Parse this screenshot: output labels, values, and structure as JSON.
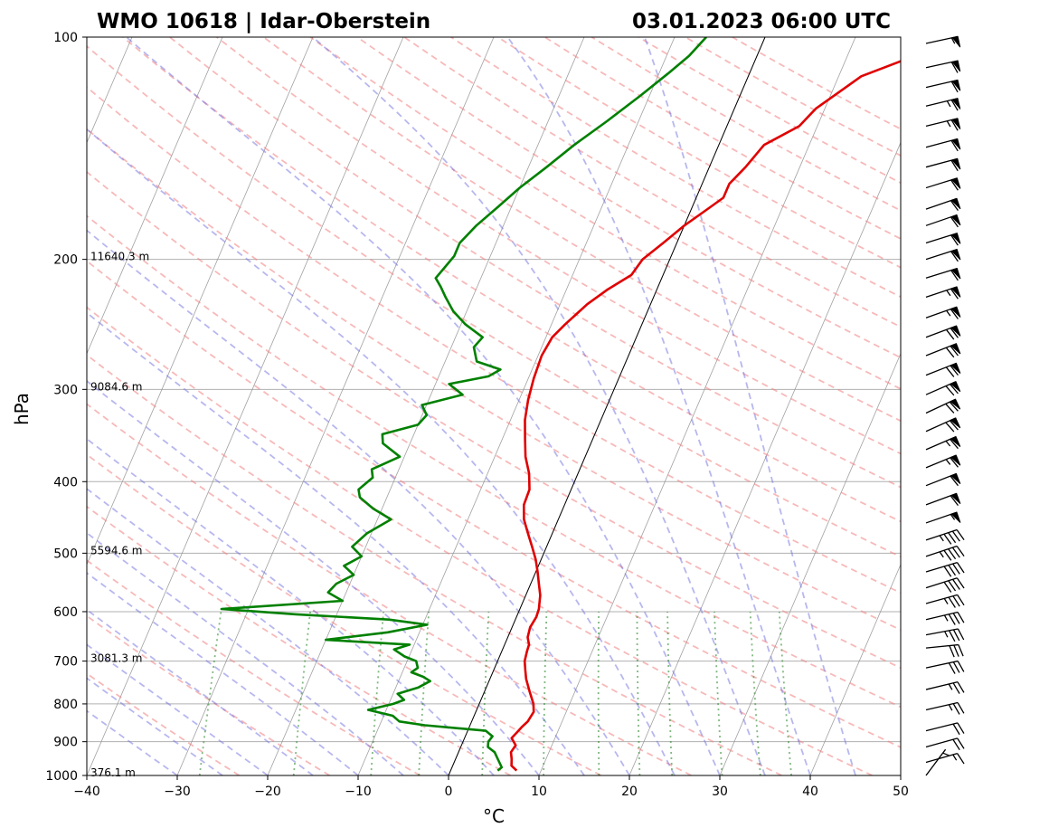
{
  "chart_data": {
    "type": "line",
    "title_left": "WMO 10618 | Idar-Oberstein",
    "title_right": "03.01.2023 06:00 UTC",
    "xlabel": "°C",
    "ylabel": "hPa",
    "xlim": [
      -40,
      50
    ],
    "ylim": [
      1000,
      100
    ],
    "x_ticks": [
      -40,
      -30,
      -20,
      -10,
      0,
      10,
      20,
      30,
      40,
      50
    ],
    "x_tick_labels": [
      "−40",
      "−30",
      "−20",
      "−10",
      "0",
      "10",
      "20",
      "30",
      "40",
      "50"
    ],
    "p_ticks": [
      100,
      200,
      300,
      400,
      500,
      600,
      700,
      800,
      900,
      1000
    ],
    "p_tick_labels": [
      "100",
      "200",
      "300",
      "400",
      "500",
      "600",
      "700",
      "800",
      "900",
      "1000"
    ],
    "height_labels": [
      {
        "p": 200,
        "text": "11640.3 m"
      },
      {
        "p": 300,
        "text": "9084.6 m"
      },
      {
        "p": 500,
        "text": "5594.6 m"
      },
      {
        "p": 700,
        "text": "3081.3 m"
      },
      {
        "p": 1000,
        "text": "376.1 m"
      }
    ],
    "series": [
      {
        "name": "temperature",
        "color": "#e00000",
        "points": [
          [
            985,
            7.3
          ],
          [
            970,
            6.5
          ],
          [
            950,
            6.2
          ],
          [
            930,
            5.8
          ],
          [
            910,
            6.0
          ],
          [
            890,
            5.2
          ],
          [
            875,
            5.5
          ],
          [
            860,
            5.8
          ],
          [
            845,
            6.2
          ],
          [
            820,
            6.4
          ],
          [
            800,
            6.0
          ],
          [
            770,
            5.0
          ],
          [
            740,
            4.0
          ],
          [
            720,
            3.5
          ],
          [
            700,
            3.0
          ],
          [
            680,
            2.8
          ],
          [
            665,
            2.7
          ],
          [
            650,
            2.2
          ],
          [
            630,
            2.0
          ],
          [
            610,
            2.2
          ],
          [
            595,
            2.1
          ],
          [
            570,
            1.6
          ],
          [
            550,
            0.9
          ],
          [
            530,
            0.2
          ],
          [
            510,
            -0.6
          ],
          [
            490,
            -1.6
          ],
          [
            470,
            -2.7
          ],
          [
            450,
            -3.8
          ],
          [
            430,
            -4.5
          ],
          [
            410,
            -4.6
          ],
          [
            390,
            -5.4
          ],
          [
            370,
            -6.6
          ],
          [
            350,
            -7.5
          ],
          [
            330,
            -8.4
          ],
          [
            310,
            -9.0
          ],
          [
            290,
            -9.4
          ],
          [
            270,
            -9.6
          ],
          [
            255,
            -9.3
          ],
          [
            245,
            -8.5
          ],
          [
            230,
            -7.0
          ],
          [
            220,
            -5.5
          ],
          [
            210,
            -3.5
          ],
          [
            200,
            -3.0
          ],
          [
            190,
            -1.5
          ],
          [
            180,
            0.0
          ],
          [
            170,
            2.0
          ],
          [
            165,
            3.0
          ],
          [
            158,
            3.0
          ],
          [
            150,
            4.0
          ],
          [
            140,
            5.0
          ],
          [
            132,
            8.0
          ],
          [
            125,
            9.0
          ],
          [
            118,
            11.0
          ],
          [
            113,
            12.5
          ],
          [
            108,
            16.0
          ],
          [
            106,
            17.5
          ],
          [
            104,
            18.5
          ],
          [
            102,
            20.5
          ],
          [
            100,
            20.7
          ]
        ]
      },
      {
        "name": "dewpoint",
        "color": "#008000",
        "points": [
          [
            985,
            5.2
          ],
          [
            975,
            5.5
          ],
          [
            960,
            5.0
          ],
          [
            945,
            4.5
          ],
          [
            930,
            4.0
          ],
          [
            915,
            3.0
          ],
          [
            900,
            2.8
          ],
          [
            885,
            3.0
          ],
          [
            870,
            2.0
          ],
          [
            855,
            -5.0
          ],
          [
            845,
            -8.0
          ],
          [
            830,
            -9.0
          ],
          [
            815,
            -12.0
          ],
          [
            800,
            -9.5
          ],
          [
            790,
            -8.5
          ],
          [
            775,
            -9.5
          ],
          [
            760,
            -7.5
          ],
          [
            745,
            -6.5
          ],
          [
            735,
            -7.5
          ],
          [
            725,
            -9.0
          ],
          [
            715,
            -8.5
          ],
          [
            700,
            -9.0
          ],
          [
            690,
            -10.5
          ],
          [
            675,
            -12.0
          ],
          [
            665,
            -10.5
          ],
          [
            655,
            -20.0
          ],
          [
            640,
            -13.5
          ],
          [
            625,
            -9.5
          ],
          [
            615,
            -14.0
          ],
          [
            605,
            -24.5
          ],
          [
            595,
            -33.0
          ],
          [
            580,
            -20.0
          ],
          [
            565,
            -22.0
          ],
          [
            550,
            -21.5
          ],
          [
            535,
            -20.0
          ],
          [
            520,
            -21.5
          ],
          [
            505,
            -20.0
          ],
          [
            490,
            -21.5
          ],
          [
            470,
            -20.5
          ],
          [
            450,
            -18.5
          ],
          [
            435,
            -21.0
          ],
          [
            420,
            -23.0
          ],
          [
            410,
            -23.5
          ],
          [
            395,
            -22.5
          ],
          [
            385,
            -23.0
          ],
          [
            370,
            -20.5
          ],
          [
            355,
            -23.0
          ],
          [
            345,
            -23.5
          ],
          [
            335,
            -20.0
          ],
          [
            325,
            -19.5
          ],
          [
            315,
            -20.5
          ],
          [
            305,
            -16.5
          ],
          [
            295,
            -18.5
          ],
          [
            288,
            -14.5
          ],
          [
            282,
            -13.5
          ],
          [
            275,
            -16.5
          ],
          [
            263,
            -17.5
          ],
          [
            255,
            -17.0
          ],
          [
            245,
            -19.5
          ],
          [
            235,
            -21.5
          ],
          [
            225,
            -23.0
          ],
          [
            218,
            -24.0
          ],
          [
            212,
            -25.0
          ],
          [
            205,
            -24.5
          ],
          [
            198,
            -24.0
          ],
          [
            190,
            -24.0
          ],
          [
            180,
            -23.0
          ],
          [
            170,
            -21.5
          ],
          [
            160,
            -20.0
          ],
          [
            150,
            -18.0
          ],
          [
            140,
            -16.0
          ],
          [
            130,
            -13.5
          ],
          [
            120,
            -11.0
          ],
          [
            112,
            -9.0
          ],
          [
            106,
            -7.5
          ],
          [
            100,
            -6.5
          ]
        ]
      }
    ],
    "wind_barbs": [
      {
        "p": 102,
        "u": -55,
        "v": -12
      },
      {
        "p": 110,
        "u": -60,
        "v": -13
      },
      {
        "p": 117,
        "u": -60,
        "v": -14
      },
      {
        "p": 124,
        "u": -62,
        "v": -15
      },
      {
        "p": 132,
        "u": -62,
        "v": -15
      },
      {
        "p": 141,
        "u": -60,
        "v": -16
      },
      {
        "p": 150,
        "u": -60,
        "v": -16
      },
      {
        "p": 160,
        "u": -58,
        "v": -18
      },
      {
        "p": 171,
        "u": -58,
        "v": -20
      },
      {
        "p": 180,
        "u": -58,
        "v": -20
      },
      {
        "p": 190,
        "u": -58,
        "v": -18
      },
      {
        "p": 200,
        "u": -56,
        "v": -18
      },
      {
        "p": 212,
        "u": -58,
        "v": -18
      },
      {
        "p": 225,
        "u": -60,
        "v": -20
      },
      {
        "p": 240,
        "u": -62,
        "v": -22
      },
      {
        "p": 255,
        "u": -64,
        "v": -24
      },
      {
        "p": 270,
        "u": -66,
        "v": -26
      },
      {
        "p": 287,
        "u": -66,
        "v": -26
      },
      {
        "p": 305,
        "u": -64,
        "v": -28
      },
      {
        "p": 323,
        "u": -64,
        "v": -30
      },
      {
        "p": 342,
        "u": -62,
        "v": -28
      },
      {
        "p": 362,
        "u": -60,
        "v": -26
      },
      {
        "p": 383,
        "u": -58,
        "v": -24
      },
      {
        "p": 405,
        "u": -56,
        "v": -22
      },
      {
        "p": 430,
        "u": -54,
        "v": -20
      },
      {
        "p": 455,
        "u": -52,
        "v": -18
      },
      {
        "p": 480,
        "u": -45,
        "v": -15
      },
      {
        "p": 505,
        "u": -42,
        "v": -14
      },
      {
        "p": 530,
        "u": -40,
        "v": -12
      },
      {
        "p": 557,
        "u": -38,
        "v": -12
      },
      {
        "p": 585,
        "u": -36,
        "v": -10
      },
      {
        "p": 615,
        "u": -34,
        "v": -8
      },
      {
        "p": 645,
        "u": -32,
        "v": -6
      },
      {
        "p": 672,
        "u": -30,
        "v": -3
      },
      {
        "p": 715,
        "u": -28,
        "v": -6
      },
      {
        "p": 765,
        "u": -25,
        "v": -6
      },
      {
        "p": 815,
        "u": -22,
        "v": -5
      },
      {
        "p": 870,
        "u": -20,
        "v": -5
      },
      {
        "p": 915,
        "u": -18,
        "v": -5
      },
      {
        "p": 960,
        "u": -14,
        "v": -4
      },
      {
        "p": 1000,
        "u": -3,
        "v": -4
      }
    ]
  }
}
